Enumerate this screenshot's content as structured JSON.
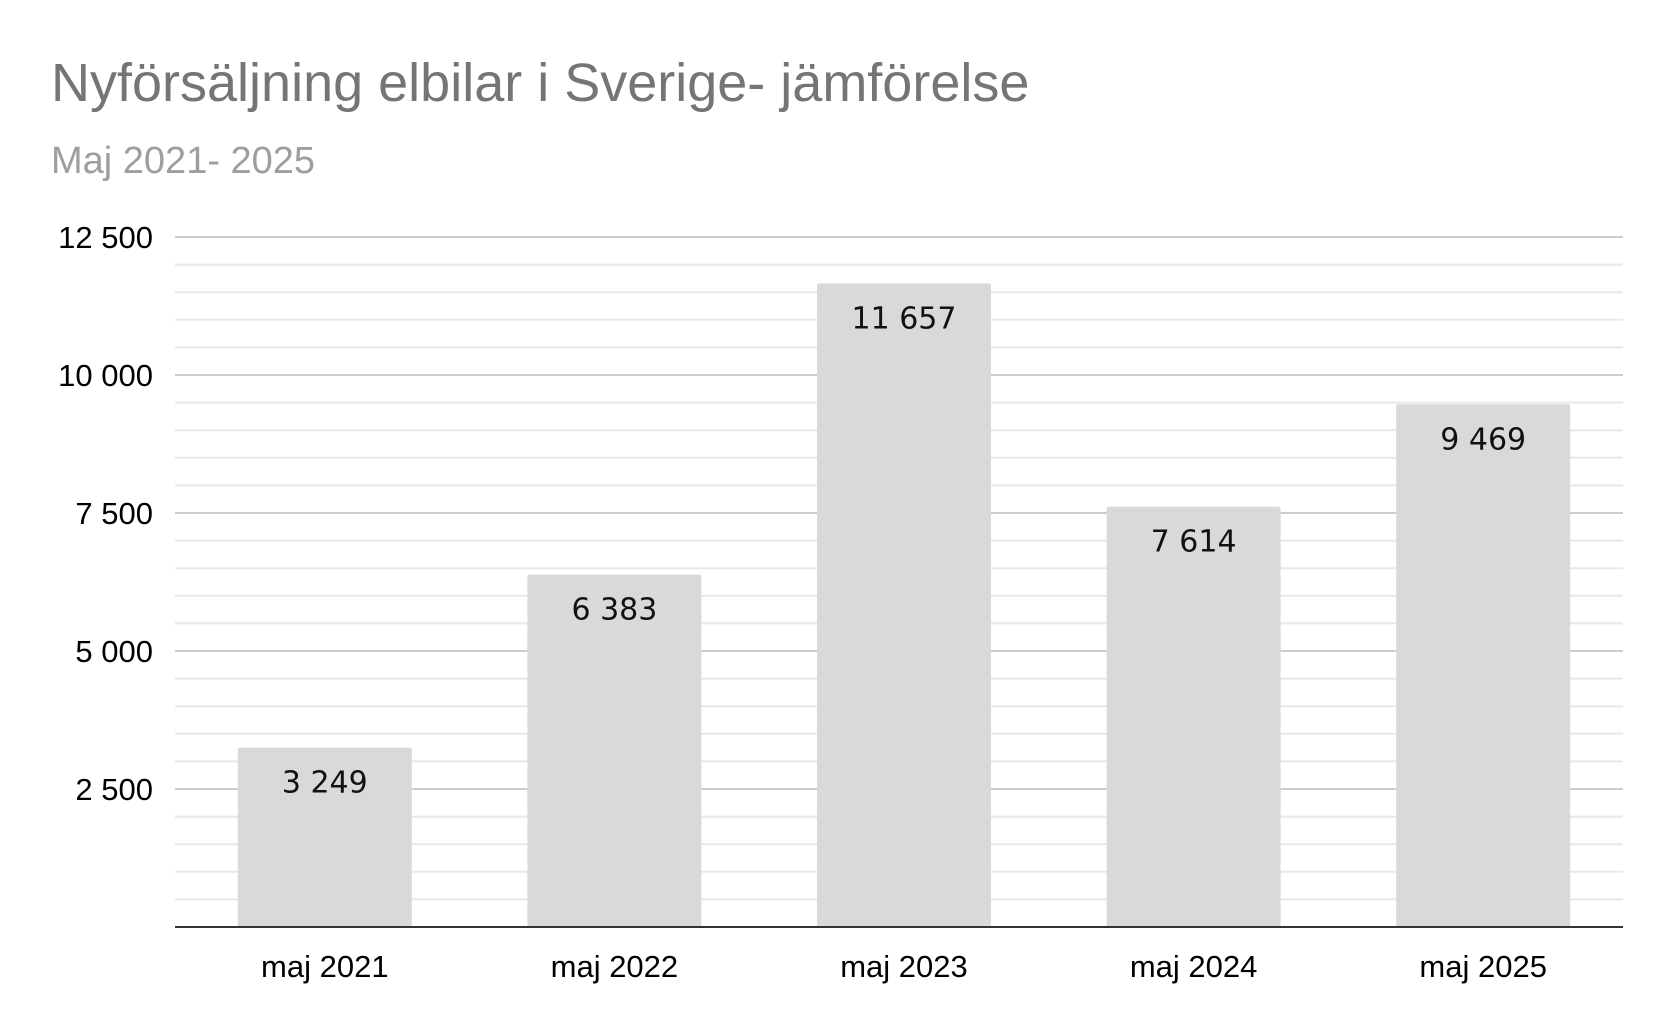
{
  "chart_data": {
    "type": "bar",
    "title": "Nyförsäljning elbilar i Sverige- jämförelse",
    "subtitle": "Maj 2021- 2025",
    "xlabel": "",
    "ylabel": "",
    "categories": [
      "maj 2021",
      "maj 2022",
      "maj 2023",
      "maj 2024",
      "maj 2025"
    ],
    "values": [
      3249,
      6383,
      11657,
      7614,
      9469
    ],
    "data_labels": [
      "3 249",
      "6 383",
      "11 657",
      "7 614",
      "9 469"
    ],
    "ylim": [
      0,
      12500
    ],
    "yticks": [
      2500,
      5000,
      7500,
      10000,
      12500
    ],
    "ytick_labels": [
      "2 500",
      "5 000",
      "7 500",
      "10 000",
      "12 500"
    ],
    "minor_gridlines_per_major": 4,
    "grid": true,
    "legend": "none",
    "colors": {
      "bar": "#d9d9d9",
      "major_grid": "#cccccc",
      "minor_grid": "#e8e8e8",
      "axis": "#333333",
      "title": "#757575",
      "subtitle": "#9e9e9e"
    }
  }
}
